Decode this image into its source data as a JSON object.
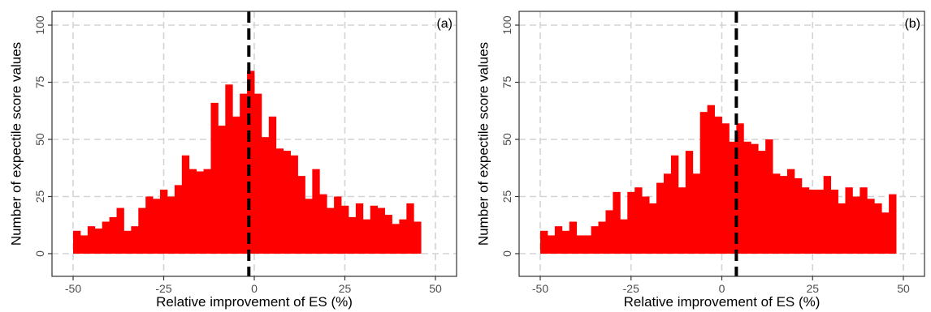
{
  "colors": {
    "bar": "#ff0000",
    "grid": "#d3d3d3",
    "frame": "#333333",
    "tick_text": "#4d4d4d",
    "vline": "#000000"
  },
  "chart_data": [
    {
      "type": "bar",
      "panel_label": "(a)",
      "xlabel": "Relative improvement of ES (%)",
      "ylabel": "Number of expectile score values",
      "xlim": [
        -50,
        50
      ],
      "ylim": [
        0,
        100
      ],
      "xticks": [
        -50,
        -25,
        0,
        25,
        50
      ],
      "xtick_labels": [
        "-50",
        "-25",
        "0",
        "25",
        "50"
      ],
      "yticks": [
        0,
        25,
        50,
        75,
        100
      ],
      "ytick_labels": [
        "0",
        "25",
        "50",
        "75",
        "100"
      ],
      "grid": true,
      "bin_width": 2,
      "bin_start": -50,
      "counts": [
        10,
        8,
        12,
        11,
        14,
        16,
        20,
        10,
        12,
        20,
        25,
        24,
        28,
        25,
        30,
        43,
        37,
        36,
        37,
        66,
        56,
        74,
        60,
        70,
        80,
        70,
        51,
        60,
        46,
        45,
        43,
        34,
        24,
        37,
        26,
        20,
        25,
        21,
        16,
        22,
        15,
        21,
        20,
        17,
        13,
        15,
        22,
        14
      ],
      "vline": -1.5
    },
    {
      "type": "bar",
      "panel_label": "(b)",
      "xlabel": "Relative improvement of ES (%)",
      "ylabel": "Number of expectile score values",
      "xlim": [
        -50,
        50
      ],
      "ylim": [
        0,
        100
      ],
      "xticks": [
        -50,
        -25,
        0,
        25,
        50
      ],
      "xtick_labels": [
        "-50",
        "-25",
        "0",
        "25",
        "50"
      ],
      "yticks": [
        0,
        25,
        50,
        75,
        100
      ],
      "ytick_labels": [
        "0",
        "25",
        "50",
        "75",
        "100"
      ],
      "grid": true,
      "bin_width": 2,
      "bin_start": -50,
      "counts": [
        10,
        8,
        12,
        10,
        14,
        8,
        8,
        12,
        14,
        19,
        27,
        15,
        27,
        29,
        25,
        22,
        31,
        35,
        43,
        29,
        45,
        35,
        62,
        65,
        60,
        57,
        49,
        57,
        49,
        48,
        45,
        50,
        35,
        34,
        37,
        33,
        29,
        28,
        28,
        34,
        28,
        22,
        29,
        25,
        29,
        24,
        22,
        18,
        26
      ],
      "vline": 4
    }
  ]
}
